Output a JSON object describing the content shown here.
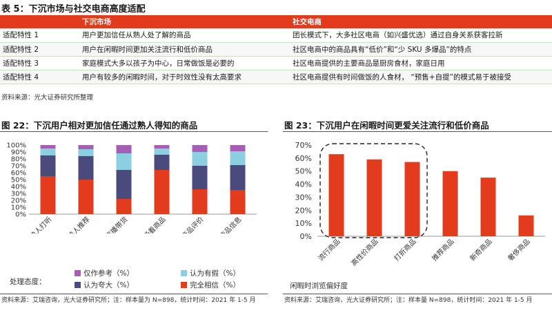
{
  "table": {
    "title": "表 5：下沉市场与社交电商高度适配",
    "headers": [
      "",
      "下沉市场",
      "社交电商"
    ],
    "rows": [
      [
        "适配特性 1",
        "用户更加信任从熟人处了解的商品",
        "团长模式下，大多社区电商（如兴盛优选）通过自身关系获客拉新"
      ],
      [
        "适配特性 2",
        "用户在闲暇时间更加关注流行和低价商品",
        "社区电商中的商品具有“低价”和“少 SKU 多爆品”的特点"
      ],
      [
        "适配特性 3",
        "家庭模式大多以孩子为中心，日常做饭是必要的",
        "社区电商提供的主要商品是厨房食材，家庭日用"
      ],
      [
        "适配特性 4",
        "用户有较多的闲暇时间，对于时效性没有太高要求",
        "社区电商提供有时间做饭的人食材，  “预售+自提”的模式易于被接受"
      ]
    ],
    "source": "资料来源：光大证券研究所整理"
  },
  "figure22": {
    "title": "图 22：下沉用户相对更加信任通过熟人得知的商品",
    "legend_title": "处理态度：",
    "source": "资料来源：艾瑞咨询，光大证券研究所；注：样本量为 N=898，统计时间：2021 年 1-5 月"
  },
  "figure23": {
    "title": "图 23：下沉用户在闲暇时间更爱关注流行和低价商品",
    "source": "资料来源：艾瑞咨询，光大证券研究所；注：样本量 N=898，统计时间：2021 年 1-5 月"
  },
  "colors": {
    "accent": "#e23a1c",
    "red": "#e33b1d",
    "navy": "#4b4a7d",
    "teal": "#8ccfe0",
    "purple": "#a65fb5"
  },
  "chart_data": [
    {
      "type": "bar",
      "stacked": true,
      "categories": [
        "熟人打听",
        "熟人推荐",
        "直播带货",
        "商场看商品",
        "购物网站商品评价",
        "搜索得商品信息"
      ],
      "series": [
        {
          "name": "完全相信（%）",
          "color": "#e33b1d",
          "values": [
            55,
            50,
            22,
            64,
            36,
            35
          ]
        },
        {
          "name": "认为夸大（%）",
          "color": "#4b4a7d",
          "values": [
            30,
            34,
            42,
            22,
            34,
            36
          ]
        },
        {
          "name": "认为有假（%）",
          "color": "#8ccfe0",
          "values": [
            10,
            10,
            24,
            9,
            20,
            20
          ]
        },
        {
          "name": "仅作参考（%）",
          "color": "#a65fb5",
          "values": [
            5,
            6,
            12,
            5,
            10,
            9
          ]
        }
      ],
      "ylim": [
        0,
        100
      ],
      "yticks": [
        "0%",
        "10%",
        "20%",
        "30%",
        "40%",
        "50%",
        "60%",
        "70%",
        "80%",
        "90%",
        "100%"
      ],
      "legend_placement": "bottom",
      "grid": false
    },
    {
      "type": "bar",
      "categories": [
        "流行商品",
        "高性价商品",
        "打折商品",
        "推荐商品",
        "新奇商品",
        "奢侈商品"
      ],
      "values": [
        63,
        59,
        57,
        50,
        45,
        16
      ],
      "color": "#e33b1d",
      "xlabel": "闲暇时浏览偏好度",
      "ylim": [
        0,
        70
      ],
      "yticks": [
        "0%",
        "10%",
        "20%",
        "30%",
        "40%",
        "50%",
        "60%",
        "70%"
      ],
      "highlight": "dashed rounded box around first three bars",
      "grid": false
    }
  ]
}
